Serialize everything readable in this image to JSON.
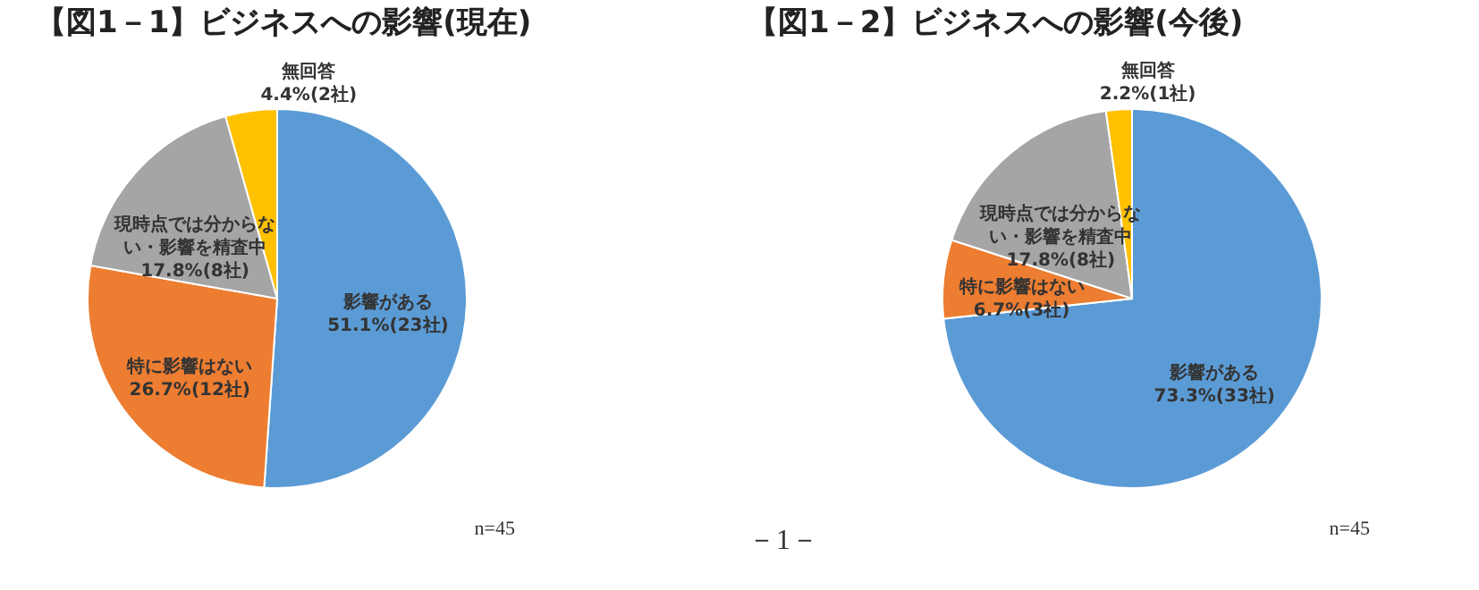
{
  "chart_data": [
    {
      "type": "pie",
      "title": "【図1－1】ビジネスへの影響(現在)",
      "categories": [
        "影響がある",
        "特に影響はない",
        "現時点では分からない・影響を精査中",
        "無回答"
      ],
      "values": [
        51.1,
        26.7,
        17.8,
        4.4
      ],
      "value_labels": [
        "51.1%(23社)",
        "26.7%(12社)",
        "17.8%(8社)",
        "4.4%(2社)"
      ],
      "colors": [
        "#5b9bd5",
        "#ed7d31",
        "#a5a5a5",
        "#ffc000"
      ],
      "annotations": [
        "n=45"
      ]
    },
    {
      "type": "pie",
      "title": "【図1－2】ビジネスへの影響(今後)",
      "categories": [
        "影響がある",
        "特に影響はない",
        "現時点では分からない・影響を精査中",
        "無回答"
      ],
      "values": [
        73.3,
        6.7,
        17.8,
        2.2
      ],
      "value_labels": [
        "73.3%(33社)",
        "6.7%(3社)",
        "17.8%(8社)",
        "2.2%(1社)"
      ],
      "colors": [
        "#5b9bd5",
        "#ed7d31",
        "#a5a5a5",
        "#ffc000"
      ],
      "annotations": [
        "n=45",
        "－1－"
      ]
    }
  ]
}
